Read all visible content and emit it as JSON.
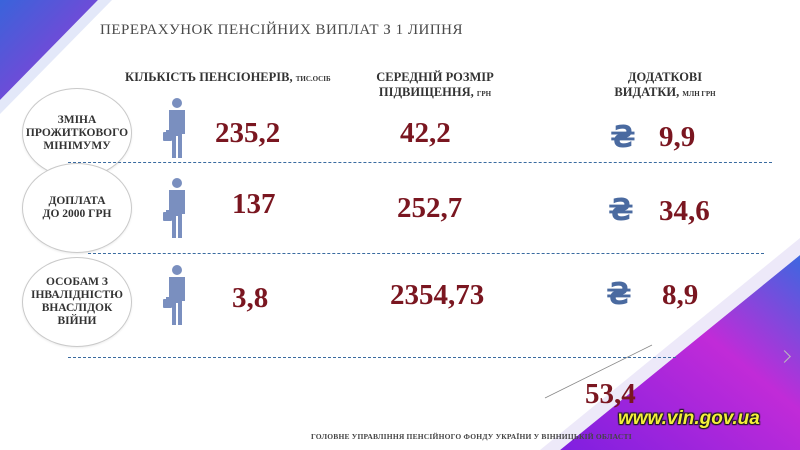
{
  "title": "ПЕРЕРАХУНОК ПЕНСІЙНИХ ВИПЛАТ З 1 ЛИПНЯ",
  "columns": {
    "pensioners": {
      "label": "КІЛЬКІСТЬ ПЕНСІОНЕРІВ,",
      "unit": "ТИС.ОСІБ"
    },
    "average": {
      "label_line1": "СЕРЕДНІЙ РОЗМІР",
      "label_line2": "ПІДВИЩЕННЯ,",
      "unit": "ГРН"
    },
    "extra": {
      "label_line1": "ДОДАТКОВІ",
      "label_line2": "ВИДАТКИ,",
      "unit": "МЛН ГРН"
    }
  },
  "rows": [
    {
      "category_lines": [
        "ЗМІНА",
        "ПРОЖИТКОВОГО",
        "МІНІМУМУ"
      ],
      "pensioners": "235,2",
      "average": "42,2",
      "extra": "9,9"
    },
    {
      "category_lines": [
        "ДОПЛАТА",
        "ДО 2000 ГРН"
      ],
      "pensioners": "137",
      "average": "252,7",
      "extra": "34,6"
    },
    {
      "category_lines": [
        "ОСОБАМ З",
        "ІНВАЛІДНІСТЮ",
        "ВНАСЛІДОК",
        "ВІЙНИ"
      ],
      "pensioners": "3,8",
      "average": "2354,73",
      "extra": "8,9"
    }
  ],
  "total": "53,4",
  "currency_symbol": "₴",
  "footer": "ГОЛОВНЕ УПРАВЛІННЯ ПЕНСІЙНОГО ФОНДУ УКРАЇНИ У ВІННИЦЬКІЙ ОБЛАСТІ",
  "watermark": "www.vin.gov.ua",
  "icons": {
    "person": "businessman-with-briefcase-icon",
    "currency": "hryvnia-icon"
  },
  "colors": {
    "value": "#7a1620",
    "accent_blue": "#3a6ba0",
    "accent_purple": "#8e24c8"
  }
}
